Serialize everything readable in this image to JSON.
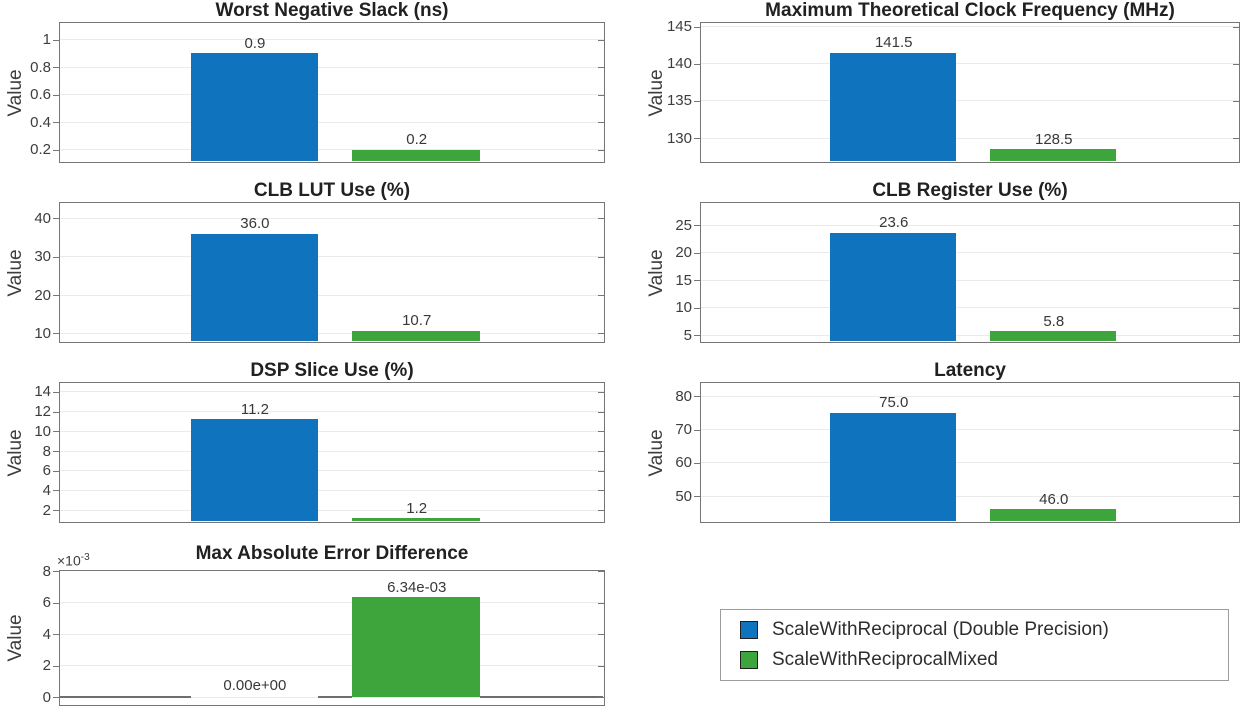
{
  "figure": {
    "background": "#ffffff"
  },
  "colors": {
    "bar_blue": "#0f73bd",
    "bar_green": "#3da53c",
    "axis_border": "#767676",
    "grid_line": "#ebebeb",
    "tick_text": "#3d3d3d",
    "title_text": "#212121"
  },
  "legend": {
    "position": "bottom-right",
    "items": [
      {
        "label": "ScaleWithReciprocal (Double Precision)",
        "color": "#0f73bd"
      },
      {
        "label": "ScaleWithReciprocalMixed",
        "color": "#3da53c"
      }
    ]
  },
  "chart_data": [
    {
      "type": "bar",
      "row": 0,
      "col": 0,
      "title": "Worst Negative Slack (ns)",
      "ylabel": "Value",
      "ylim": [
        0.12,
        1.12
      ],
      "grid": true,
      "yticks": [
        0.2,
        0.4,
        0.6,
        0.8,
        1
      ],
      "ytick_labels": [
        "0.2",
        "0.4",
        "0.6",
        "0.8",
        "1"
      ],
      "series": [
        {
          "name": "ScaleWithReciprocal (Double Precision)",
          "value": 0.9,
          "label": "0.9"
        },
        {
          "name": "ScaleWithReciprocalMixed",
          "value": 0.2,
          "label": "0.2"
        }
      ]
    },
    {
      "type": "bar",
      "row": 0,
      "col": 1,
      "title": "Maximum Theoretical Clock Frequency (MHz)",
      "ylabel": "Value",
      "ylim": [
        126.9,
        145.5
      ],
      "grid": true,
      "yticks": [
        130,
        135,
        140,
        145
      ],
      "ytick_labels": [
        "130",
        "135",
        "140",
        "145"
      ],
      "series": [
        {
          "name": "ScaleWithReciprocal (Double Precision)",
          "value": 141.5,
          "label": "141.5"
        },
        {
          "name": "ScaleWithReciprocalMixed",
          "value": 128.5,
          "label": "128.5"
        }
      ]
    },
    {
      "type": "bar",
      "row": 1,
      "col": 0,
      "title": "CLB LUT Use (%)",
      "ylabel": "Value",
      "ylim": [
        8,
        44
      ],
      "grid": true,
      "yticks": [
        10,
        20,
        30,
        40
      ],
      "ytick_labels": [
        "10",
        "20",
        "30",
        "40"
      ],
      "series": [
        {
          "name": "ScaleWithReciprocal (Double Precision)",
          "value": 36.0,
          "label": "36.0"
        },
        {
          "name": "ScaleWithReciprocalMixed",
          "value": 10.7,
          "label": "10.7"
        }
      ]
    },
    {
      "type": "bar",
      "row": 1,
      "col": 1,
      "title": "CLB Register Use (%)",
      "ylabel": "Value",
      "ylim": [
        4,
        29
      ],
      "grid": true,
      "yticks": [
        5,
        10,
        15,
        20,
        25
      ],
      "ytick_labels": [
        "5",
        "10",
        "15",
        "20",
        "25"
      ],
      "series": [
        {
          "name": "ScaleWithReciprocal (Double Precision)",
          "value": 23.6,
          "label": "23.6"
        },
        {
          "name": "ScaleWithReciprocalMixed",
          "value": 5.8,
          "label": "5.8"
        }
      ]
    },
    {
      "type": "bar",
      "row": 2,
      "col": 0,
      "title": "DSP Slice Use (%)",
      "ylabel": "Value",
      "ylim": [
        0.9,
        14.9
      ],
      "grid": true,
      "yticks": [
        2,
        4,
        6,
        8,
        10,
        12,
        14
      ],
      "ytick_labels": [
        "2",
        "4",
        "6",
        "8",
        "10",
        "12",
        "14"
      ],
      "series": [
        {
          "name": "ScaleWithReciprocal (Double Precision)",
          "value": 11.2,
          "label": "11.2"
        },
        {
          "name": "ScaleWithReciprocalMixed",
          "value": 1.2,
          "label": "1.2"
        }
      ]
    },
    {
      "type": "bar",
      "row": 2,
      "col": 1,
      "title": "Latency",
      "ylabel": "Value",
      "ylim": [
        42.5,
        84
      ],
      "grid": true,
      "yticks": [
        50,
        60,
        70,
        80
      ],
      "ytick_labels": [
        "50",
        "60",
        "70",
        "80"
      ],
      "series": [
        {
          "name": "ScaleWithReciprocal (Double Precision)",
          "value": 75.0,
          "label": "75.0"
        },
        {
          "name": "ScaleWithReciprocalMixed",
          "value": 46.0,
          "label": "46.0"
        }
      ]
    },
    {
      "type": "bar",
      "row": 3,
      "col": 0,
      "title": "Max Absolute Error Difference",
      "ylabel": "Value",
      "ylim": [
        -0.00043,
        0.008
      ],
      "grid": true,
      "exponent": {
        "prefix": "×10",
        "exponent": "-3"
      },
      "yticks": [
        0,
        0.002,
        0.004,
        0.006,
        0.008
      ],
      "ytick_labels": [
        "0",
        "2",
        "4",
        "6",
        "8"
      ],
      "baseline": 0,
      "series": [
        {
          "name": "ScaleWithReciprocal (Double Precision)",
          "value": 0,
          "label": "0.00e+00"
        },
        {
          "name": "ScaleWithReciprocalMixed",
          "value": 0.00634,
          "label": "6.34e-03"
        }
      ]
    }
  ]
}
